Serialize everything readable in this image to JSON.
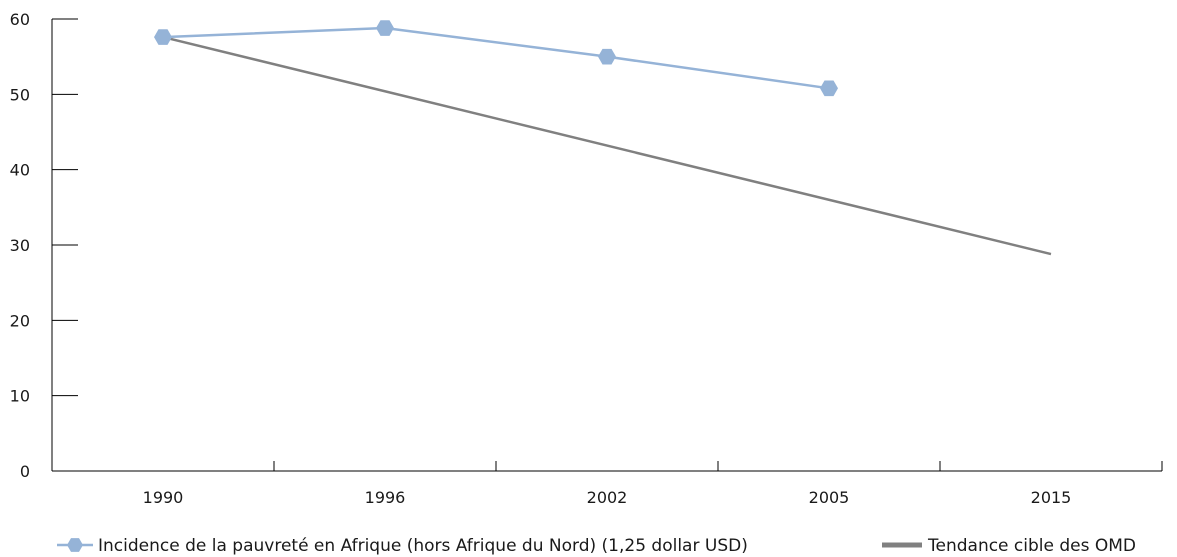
{
  "chart_data": {
    "type": "line",
    "categories": [
      "1990",
      "1996",
      "2002",
      "2005",
      "2015"
    ],
    "ylim": [
      0,
      60
    ],
    "yticks": [
      "0",
      "10",
      "20",
      "30",
      "40",
      "50",
      "60"
    ],
    "grid": false,
    "legend_position": "bottom",
    "series": [
      {
        "name": "Incidence de la pauvreté en Afrique (hors Afrique du Nord) (1,25 dollar USD)",
        "values": [
          57.6,
          58.8,
          55.0,
          50.8,
          null
        ],
        "color": "#95b3d7",
        "marker": "hexagon"
      },
      {
        "name": "Tendance cible des OMD",
        "values": [
          57.6,
          null,
          null,
          null,
          28.8
        ],
        "color": "#808080",
        "marker": "none"
      }
    ]
  }
}
